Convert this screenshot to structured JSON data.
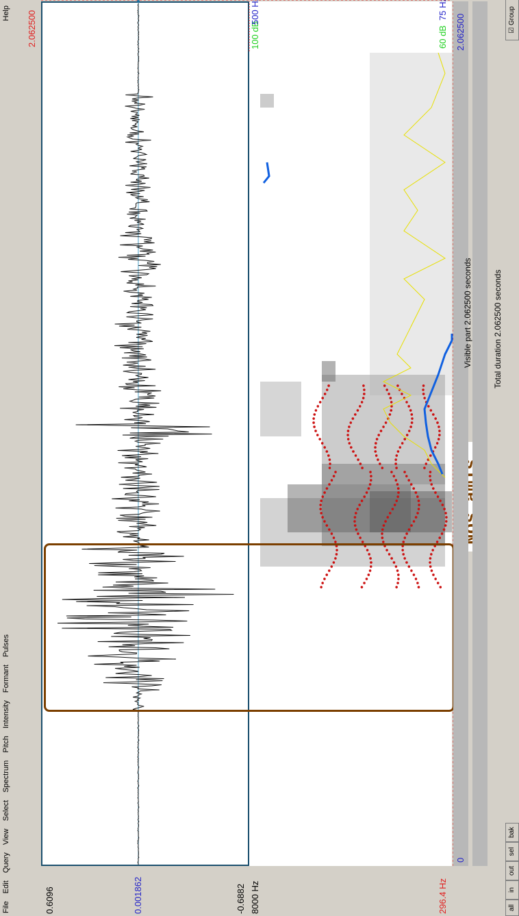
{
  "menu": {
    "items": [
      "File",
      "Edit",
      "Query",
      "View",
      "Select",
      "Spectrum",
      "Pitch",
      "Intensity",
      "Formant",
      "Pulses"
    ],
    "help": "Help"
  },
  "waveform": {
    "max_label": "0.6096",
    "zero_label": "0.001862",
    "min_label": "-0.6882"
  },
  "spectrogram": {
    "top_freq": "8000 Hz",
    "bottom_freq": "296.4 Hz",
    "intensity_top": "100 dB",
    "intensity_bottom": "60 dB",
    "pitch_top": "500 Hz",
    "pitch_bottom": "75 Hz"
  },
  "time": {
    "cursor_top": "2.062500",
    "right_value": "2.062500",
    "start_value": "0"
  },
  "caption": "Nos amis.",
  "status": {
    "visible_part": "Visible part 2.062500 seconds",
    "total_duration": "Total duration 2.062500 seconds"
  },
  "buttons": {
    "all": "all",
    "in": "in",
    "out": "out",
    "sel": "sel",
    "bak": "bak"
  },
  "group_checkbox": "Group",
  "colors": {
    "selection": "#7b3f00",
    "formant": "#cc1010",
    "intensity": "#e8e000",
    "pitch": "#1060e0"
  }
}
